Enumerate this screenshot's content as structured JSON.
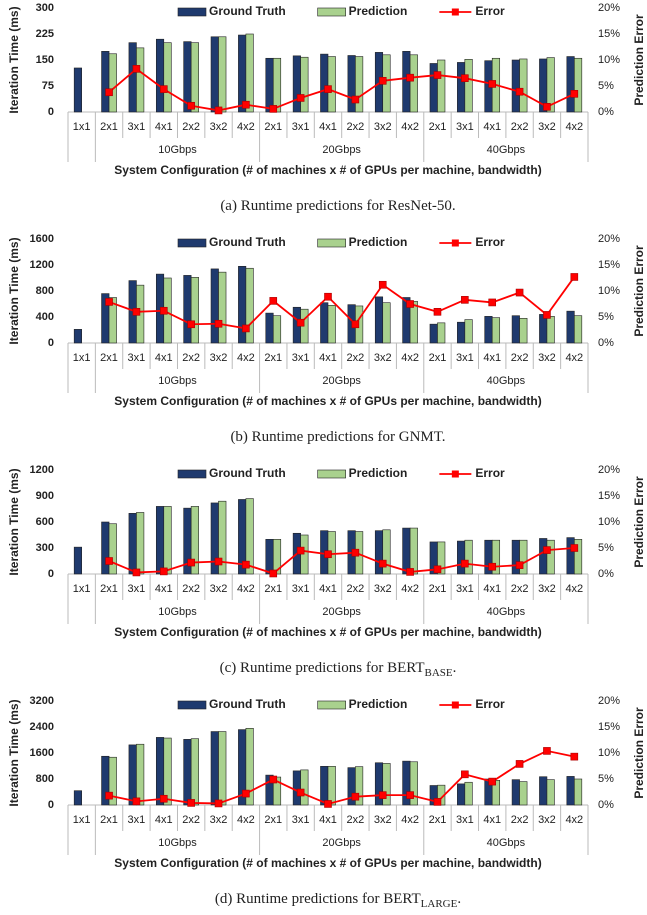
{
  "chart_data": [
    {
      "type": "bar",
      "caption": {
        "text": "(a) Runtime predictions for ResNet-50."
      },
      "ylabel": "Iteration Time (ms)",
      "y2label": "Prediction Error",
      "xlabel": "System Configuration (# of machines x # of GPUs per machine, bandwidth)",
      "category_groups": [
        {
          "name": null,
          "categories": [
            "1x1"
          ]
        },
        {
          "name": "10Gbps",
          "categories": [
            "2x1",
            "3x1",
            "4x1",
            "2x2",
            "3x2",
            "4x2"
          ]
        },
        {
          "name": "20Gbps",
          "categories": [
            "2x1",
            "3x1",
            "4x1",
            "2x2",
            "3x2",
            "4x2"
          ]
        },
        {
          "name": "40Gbps",
          "categories": [
            "2x1",
            "3x1",
            "4x1",
            "2x2",
            "3x2",
            "4x2"
          ]
        }
      ],
      "series": [
        {
          "name": "Ground Truth",
          "color": "#1f3a6e",
          "values": [
            127,
            175,
            200,
            210,
            203,
            217,
            222,
            155,
            162,
            167,
            163,
            172,
            175,
            140,
            143,
            148,
            150,
            153,
            160
          ]
        },
        {
          "name": "Prediction",
          "color": "#a9d18e",
          "values": [
            null,
            168,
            185,
            200,
            200,
            217,
            225,
            155,
            158,
            160,
            160,
            165,
            165,
            150,
            152,
            155,
            153,
            157,
            155
          ]
        },
        {
          "name": "Error",
          "color": "#ff0000",
          "type": "line",
          "axis": "y2",
          "values": [
            null,
            3.8,
            8.3,
            4.4,
            1.2,
            0.3,
            1.4,
            0.6,
            2.7,
            4.4,
            2.4,
            6.0,
            6.6,
            7.1,
            6.5,
            5.4,
            3.9,
            1.0,
            3.5
          ]
        }
      ],
      "ylim": [
        0,
        300
      ],
      "yticks": [
        0,
        75,
        150,
        225,
        300
      ],
      "y2lim": [
        0,
        20
      ],
      "y2ticks": [
        {
          "value": 0,
          "label": "0%"
        },
        {
          "value": 5,
          "label": "5%"
        },
        {
          "value": 10,
          "label": "10%"
        },
        {
          "value": 15,
          "label": "15%"
        },
        {
          "value": 20,
          "label": "20%"
        }
      ],
      "grid": false,
      "legend": "top"
    },
    {
      "type": "bar",
      "caption": {
        "text": "(b) Runtime predictions for GNMT."
      },
      "ylabel": "Iteration Time (ms)",
      "y2label": "Prediction Error",
      "xlabel": "System Configuration (# of machines x # of GPUs per machine, bandwidth)",
      "category_groups": [
        {
          "name": null,
          "categories": [
            "1x1"
          ]
        },
        {
          "name": "10Gbps",
          "categories": [
            "2x1",
            "3x1",
            "4x1",
            "2x2",
            "3x2",
            "4x2"
          ]
        },
        {
          "name": "20Gbps",
          "categories": [
            "2x1",
            "3x1",
            "4x1",
            "2x2",
            "3x2",
            "4x2"
          ]
        },
        {
          "name": "40Gbps",
          "categories": [
            "2x1",
            "3x1",
            "4x1",
            "2x2",
            "3x2",
            "4x2"
          ]
        }
      ],
      "series": [
        {
          "name": "Ground Truth",
          "color": "#1f3a6e",
          "values": [
            210,
            760,
            960,
            1060,
            1040,
            1140,
            1180,
            460,
            550,
            620,
            590,
            710,
            700,
            290,
            320,
            410,
            420,
            440,
            490
          ]
        },
        {
          "name": "Prediction",
          "color": "#a9d18e",
          "values": [
            null,
            700,
            890,
            1000,
            1010,
            1090,
            1150,
            420,
            520,
            580,
            570,
            620,
            640,
            310,
            360,
            390,
            380,
            410,
            420
          ]
        },
        {
          "name": "Error",
          "color": "#ff0000",
          "type": "line",
          "axis": "y2",
          "values": [
            null,
            7.9,
            6.0,
            6.2,
            3.6,
            3.7,
            2.8,
            8.1,
            3.9,
            8.9,
            3.6,
            11.2,
            7.5,
            6.0,
            8.3,
            7.8,
            9.7,
            5.4,
            12.7
          ]
        }
      ],
      "ylim": [
        0,
        1600
      ],
      "yticks": [
        0,
        400,
        800,
        1200,
        1600
      ],
      "y2lim": [
        0,
        20
      ],
      "y2ticks": [
        {
          "value": 0,
          "label": "0%"
        },
        {
          "value": 5,
          "label": "5%"
        },
        {
          "value": 10,
          "label": "10%"
        },
        {
          "value": 15,
          "label": "15%"
        },
        {
          "value": 20,
          "label": "20%"
        }
      ],
      "grid": false,
      "legend": "top"
    },
    {
      "type": "bar",
      "caption": {
        "text": "(c) Runtime predictions for BERT",
        "sub": "BASE",
        "end": "."
      },
      "ylabel": "Iteration Time (ms)",
      "y2label": "Prediction Error",
      "xlabel": "System Configuration (# of machines x # of GPUs per machine, bandwidth)",
      "category_groups": [
        {
          "name": null,
          "categories": [
            "1x1"
          ]
        },
        {
          "name": "10Gbps",
          "categories": [
            "2x1",
            "3x1",
            "4x1",
            "2x2",
            "3x2",
            "4x2"
          ]
        },
        {
          "name": "20Gbps",
          "categories": [
            "2x1",
            "3x1",
            "4x1",
            "2x2",
            "3x2",
            "4x2"
          ]
        },
        {
          "name": "40Gbps",
          "categories": [
            "2x1",
            "3x1",
            "4x1",
            "2x2",
            "3x2",
            "4x2"
          ]
        }
      ],
      "series": [
        {
          "name": "Ground Truth",
          "color": "#1f3a6e",
          "values": [
            310,
            600,
            700,
            780,
            760,
            820,
            860,
            400,
            470,
            500,
            500,
            500,
            530,
            370,
            380,
            390,
            390,
            410,
            420
          ]
        },
        {
          "name": "Prediction",
          "color": "#a9d18e",
          "values": [
            null,
            580,
            710,
            780,
            780,
            840,
            870,
            400,
            450,
            490,
            490,
            510,
            530,
            370,
            390,
            390,
            390,
            390,
            400
          ]
        },
        {
          "name": "Error",
          "color": "#ff0000",
          "type": "line",
          "axis": "y2",
          "values": [
            null,
            2.5,
            0.3,
            0.5,
            2.2,
            2.4,
            1.8,
            0.1,
            4.5,
            3.8,
            4.1,
            2.0,
            0.4,
            0.9,
            2.0,
            1.4,
            1.7,
            4.6,
            5.0
          ]
        }
      ],
      "ylim": [
        0,
        1200
      ],
      "yticks": [
        0,
        300,
        600,
        900,
        1200
      ],
      "y2lim": [
        0,
        20
      ],
      "y2ticks": [
        {
          "value": 0,
          "label": "0%"
        },
        {
          "value": 5,
          "label": "5%"
        },
        {
          "value": 10,
          "label": "10%"
        },
        {
          "value": 15,
          "label": "15%"
        },
        {
          "value": 20,
          "label": "20%"
        }
      ],
      "grid": false,
      "legend": "top"
    },
    {
      "type": "bar",
      "caption": {
        "text": "(d) Runtime predictions for BERT",
        "sub": "LARGE",
        "end": "."
      },
      "ylabel": "Iteration Time (ms)",
      "y2label": "Prediction Error",
      "xlabel": "System Configuration (# of machines x # of GPUs per machine, bandwidth)",
      "category_groups": [
        {
          "name": null,
          "categories": [
            "1x1"
          ]
        },
        {
          "name": "10Gbps",
          "categories": [
            "2x1",
            "3x1",
            "4x1",
            "2x2",
            "3x2",
            "4x2"
          ]
        },
        {
          "name": "20Gbps",
          "categories": [
            "2x1",
            "3x1",
            "4x1",
            "2x2",
            "3x2",
            "4x2"
          ]
        },
        {
          "name": "40Gbps",
          "categories": [
            "2x1",
            "3x1",
            "4x1",
            "2x2",
            "3x2",
            "4x2"
          ]
        }
      ],
      "series": [
        {
          "name": "Ground Truth",
          "color": "#1f3a6e",
          "values": [
            440,
            1500,
            1850,
            2080,
            2020,
            2260,
            2320,
            920,
            1050,
            1190,
            1150,
            1300,
            1350,
            600,
            650,
            800,
            780,
            870,
            880
          ]
        },
        {
          "name": "Prediction",
          "color": "#a9d18e",
          "values": [
            null,
            1470,
            1870,
            2060,
            2040,
            2260,
            2360,
            860,
            1080,
            1190,
            1180,
            1280,
            1330,
            610,
            700,
            760,
            720,
            780,
            800
          ]
        },
        {
          "name": "Error",
          "color": "#ff0000",
          "type": "line",
          "axis": "y2",
          "values": [
            null,
            1.8,
            0.7,
            1.2,
            0.4,
            0.3,
            2.2,
            4.9,
            2.4,
            0.2,
            1.6,
            1.9,
            1.9,
            0.6,
            5.9,
            4.5,
            7.9,
            10.4,
            9.3
          ]
        }
      ],
      "ylim": [
        0,
        3200
      ],
      "yticks": [
        0,
        800,
        1600,
        2400,
        3200
      ],
      "y2lim": [
        0,
        20
      ],
      "y2ticks": [
        {
          "value": 0,
          "label": "0%"
        },
        {
          "value": 5,
          "label": "5%"
        },
        {
          "value": 10,
          "label": "10%"
        },
        {
          "value": 15,
          "label": "15%"
        },
        {
          "value": 20,
          "label": "20%"
        }
      ],
      "grid": false,
      "legend": "top"
    }
  ]
}
